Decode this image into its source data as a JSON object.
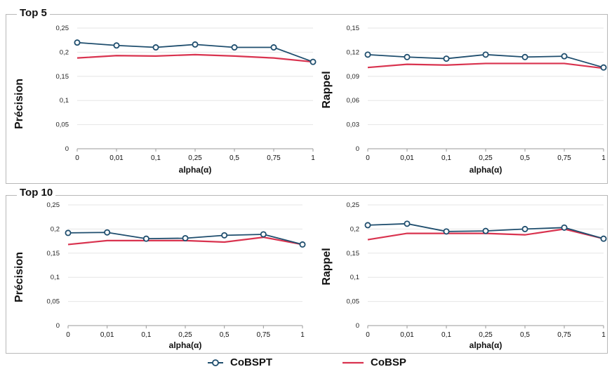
{
  "colors": {
    "cobspt": "#1f4e6e",
    "cobsp": "#d9334f"
  },
  "sections": [
    {
      "title": "Top 5"
    },
    {
      "title": "Top 10"
    }
  ],
  "legend": [
    {
      "label": "CoBSPT",
      "color": "#1f4e6e",
      "marker": "circle"
    },
    {
      "label": "CoBSP",
      "color": "#d9334f",
      "marker": "line"
    }
  ],
  "chart_data": [
    {
      "type": "line",
      "section": "Top 5",
      "categories": [
        "0",
        "0,01",
        "0,1",
        "0,25",
        "0,5",
        "0,75",
        "1"
      ],
      "xlabel": "alpha(α)",
      "ylabel": "Précision",
      "ylim": [
        0,
        0.25
      ],
      "yticks": [
        "0",
        "0,05",
        "0,1",
        "0,15",
        "0,2",
        "0,25"
      ],
      "series": [
        {
          "name": "CoBSPT",
          "values": [
            0.22,
            0.214,
            0.21,
            0.216,
            0.21,
            0.21,
            0.18
          ]
        },
        {
          "name": "CoBSP",
          "values": [
            0.188,
            0.193,
            0.192,
            0.195,
            0.192,
            0.188,
            0.18
          ]
        }
      ]
    },
    {
      "type": "line",
      "section": "Top 5",
      "categories": [
        "0",
        "0,01",
        "0,1",
        "0,25",
        "0,5",
        "0,75",
        "1"
      ],
      "xlabel": "alpha(α)",
      "ylabel": "Rappel",
      "ylim": [
        0,
        0.15
      ],
      "yticks": [
        "0",
        "0,03",
        "0,06",
        "0,09",
        "0,12",
        "0,15"
      ],
      "series": [
        {
          "name": "CoBSPT",
          "values": [
            0.117,
            0.114,
            0.112,
            0.117,
            0.114,
            0.115,
            0.101
          ]
        },
        {
          "name": "CoBSP",
          "values": [
            0.101,
            0.105,
            0.104,
            0.106,
            0.106,
            0.106,
            0.1
          ]
        }
      ]
    },
    {
      "type": "line",
      "section": "Top 10",
      "categories": [
        "0",
        "0,01",
        "0,1",
        "0,25",
        "0,5",
        "0,75",
        "1"
      ],
      "xlabel": "alpha(α)",
      "ylabel": "Précision",
      "ylim": [
        0,
        0.25
      ],
      "yticks": [
        "0",
        "0,05",
        "0,1",
        "0,15",
        "0,2",
        "0,25"
      ],
      "series": [
        {
          "name": "CoBSPT",
          "values": [
            0.192,
            0.193,
            0.18,
            0.181,
            0.187,
            0.189,
            0.168
          ]
        },
        {
          "name": "CoBSP",
          "values": [
            0.168,
            0.176,
            0.176,
            0.176,
            0.173,
            0.183,
            0.168
          ]
        }
      ]
    },
    {
      "type": "line",
      "section": "Top 10",
      "categories": [
        "0",
        "0,01",
        "0,1",
        "0,25",
        "0,5",
        "0,75",
        "1"
      ],
      "xlabel": "alpha(α)",
      "ylabel": "Rappel",
      "ylim": [
        0,
        0.25
      ],
      "yticks": [
        "0",
        "0,05",
        "0,1",
        "0,15",
        "0,2",
        "0,25"
      ],
      "series": [
        {
          "name": "CoBSPT",
          "values": [
            0.208,
            0.211,
            0.195,
            0.196,
            0.2,
            0.203,
            0.18
          ]
        },
        {
          "name": "CoBSP",
          "values": [
            0.178,
            0.191,
            0.191,
            0.191,
            0.188,
            0.2,
            0.18
          ]
        }
      ]
    }
  ]
}
